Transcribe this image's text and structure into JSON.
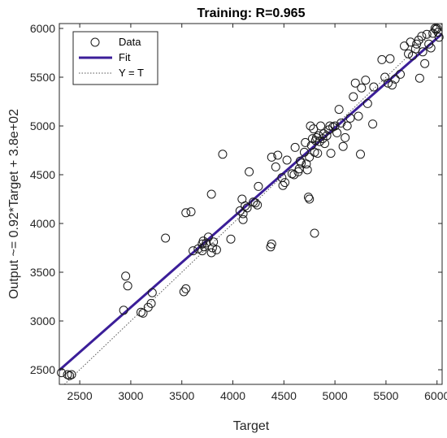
{
  "chart_data": {
    "type": "scatter",
    "title": "Training: R=0.965",
    "xlabel": "Target",
    "ylabel": "Output ~= 0.92*Target + 3.8e+02",
    "xlim": [
      2300,
      6050
    ],
    "ylim": [
      2350,
      6050
    ],
    "xticks": [
      2500,
      3000,
      3500,
      4000,
      4500,
      5000,
      5500,
      6000
    ],
    "yticks": [
      2500,
      3000,
      3500,
      4000,
      4500,
      5000,
      5500,
      6000
    ],
    "legend": {
      "placement": "top-left",
      "entries": [
        {
          "label": "Data",
          "marker": "circle"
        },
        {
          "label": "Fit",
          "line": "solid"
        },
        {
          "label": "Y = T",
          "line": "dotted"
        }
      ]
    },
    "fit": {
      "slope": 0.92,
      "intercept": 380,
      "color": "#3b1e99"
    },
    "identity_color": "#555555",
    "marker_color": "#1a1a1a",
    "series": [
      {
        "name": "Data",
        "points": [
          [
            2320,
            2470
          ],
          [
            2380,
            2450
          ],
          [
            2400,
            2440
          ],
          [
            2420,
            2450
          ],
          [
            2930,
            3110
          ],
          [
            2950,
            3460
          ],
          [
            2970,
            3360
          ],
          [
            3100,
            3090
          ],
          [
            3120,
            3080
          ],
          [
            3170,
            3140
          ],
          [
            3200,
            3180
          ],
          [
            3210,
            3290
          ],
          [
            3340,
            3850
          ],
          [
            3520,
            3300
          ],
          [
            3540,
            3330
          ],
          [
            3540,
            4110
          ],
          [
            3590,
            4120
          ],
          [
            3610,
            3720
          ],
          [
            3660,
            3740
          ],
          [
            3700,
            3720
          ],
          [
            3700,
            3790
          ],
          [
            3710,
            3820
          ],
          [
            3720,
            3760
          ],
          [
            3740,
            3800
          ],
          [
            3760,
            3860
          ],
          [
            3790,
            3700
          ],
          [
            3790,
            4300
          ],
          [
            3800,
            3750
          ],
          [
            3810,
            3810
          ],
          [
            3840,
            3730
          ],
          [
            3900,
            4710
          ],
          [
            3980,
            3840
          ],
          [
            4070,
            4130
          ],
          [
            4090,
            4250
          ],
          [
            4100,
            4100
          ],
          [
            4100,
            4040
          ],
          [
            4120,
            4180
          ],
          [
            4140,
            4160
          ],
          [
            4160,
            4530
          ],
          [
            4200,
            4220
          ],
          [
            4220,
            4210
          ],
          [
            4240,
            4190
          ],
          [
            4250,
            4380
          ],
          [
            4370,
            3760
          ],
          [
            4380,
            3790
          ],
          [
            4380,
            4680
          ],
          [
            4420,
            4580
          ],
          [
            4440,
            4700
          ],
          [
            4480,
            4470
          ],
          [
            4490,
            4390
          ],
          [
            4510,
            4420
          ],
          [
            4530,
            4650
          ],
          [
            4580,
            4510
          ],
          [
            4600,
            4500
          ],
          [
            4610,
            4780
          ],
          [
            4640,
            4530
          ],
          [
            4650,
            4560
          ],
          [
            4660,
            4640
          ],
          [
            4670,
            4620
          ],
          [
            4700,
            4730
          ],
          [
            4710,
            4830
          ],
          [
            4720,
            4610
          ],
          [
            4730,
            4550
          ],
          [
            4740,
            4270
          ],
          [
            4750,
            4250
          ],
          [
            4750,
            4680
          ],
          [
            4760,
            5000
          ],
          [
            4770,
            4800
          ],
          [
            4780,
            4870
          ],
          [
            4790,
            4970
          ],
          [
            4800,
            3900
          ],
          [
            4800,
            4730
          ],
          [
            4810,
            4850
          ],
          [
            4820,
            4880
          ],
          [
            4830,
            4720
          ],
          [
            4840,
            4900
          ],
          [
            4850,
            4840
          ],
          [
            4860,
            5000
          ],
          [
            4880,
            4870
          ],
          [
            4890,
            4920
          ],
          [
            4900,
            4820
          ],
          [
            4920,
            4900
          ],
          [
            4940,
            4960
          ],
          [
            4950,
            5000
          ],
          [
            4960,
            4720
          ],
          [
            4980,
            4990
          ],
          [
            5000,
            5000
          ],
          [
            5020,
            4930
          ],
          [
            5040,
            5170
          ],
          [
            5060,
            5030
          ],
          [
            5080,
            4790
          ],
          [
            5100,
            4880
          ],
          [
            5120,
            5000
          ],
          [
            5150,
            5080
          ],
          [
            5180,
            5300
          ],
          [
            5200,
            5440
          ],
          [
            5230,
            5100
          ],
          [
            5250,
            4710
          ],
          [
            5260,
            5390
          ],
          [
            5300,
            5470
          ],
          [
            5320,
            5230
          ],
          [
            5370,
            5020
          ],
          [
            5380,
            5400
          ],
          [
            5460,
            5680
          ],
          [
            5490,
            5500
          ],
          [
            5520,
            5440
          ],
          [
            5540,
            5690
          ],
          [
            5560,
            5420
          ],
          [
            5590,
            5480
          ],
          [
            5640,
            5530
          ],
          [
            5680,
            5820
          ],
          [
            5720,
            5740
          ],
          [
            5740,
            5860
          ],
          [
            5760,
            5720
          ],
          [
            5790,
            5790
          ],
          [
            5800,
            5840
          ],
          [
            5820,
            5880
          ],
          [
            5830,
            5490
          ],
          [
            5850,
            5920
          ],
          [
            5860,
            5760
          ],
          [
            5880,
            5640
          ],
          [
            5900,
            5940
          ],
          [
            5920,
            5840
          ],
          [
            5940,
            5800
          ],
          [
            5960,
            5950
          ],
          [
            5980,
            6000
          ],
          [
            5990,
            5990
          ],
          [
            6000,
            6000
          ],
          [
            6010,
            5960
          ],
          [
            6020,
            5910
          ]
        ]
      }
    ]
  }
}
